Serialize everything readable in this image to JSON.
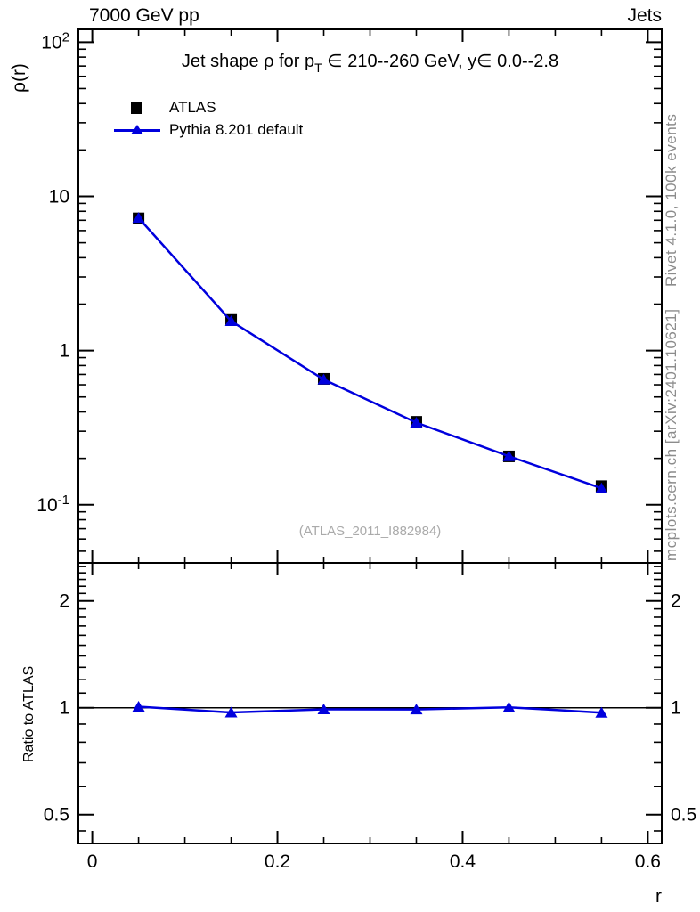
{
  "header": {
    "left": "7000 GeV pp",
    "right": "Jets"
  },
  "titles": {
    "main_pre": "Jet shape ρ for p",
    "main_sub": "T",
    "main_post": " ∈ 210--260 GeV, y∈ 0.0--2.8",
    "watermark": "(ATLAS_2011_I882984)",
    "credit_right_top": "Rivet 4.1.0,  100k events",
    "credit_right_bottom": "mcplots.cern.ch [arXiv:2401.10621]"
  },
  "axes": {
    "ylabel": "ρ(r)",
    "xlabel": "r",
    "ratio_ylabel": "Ratio to ATLAS"
  },
  "legend": {
    "items": [
      {
        "label": "ATLAS",
        "marker": "black-square"
      },
      {
        "label": "Pythia 8.201 default",
        "marker": "blue-line-triangle"
      }
    ]
  },
  "colors": {
    "pythia_blue": "#0000dd",
    "atlas_black": "#000000",
    "credit_gray": "#8c8c8c",
    "watermark_gray": "#aaaaaa"
  },
  "chart_data": [
    {
      "type": "line",
      "title": "Jet shape ρ for pT ∈ 210--260 GeV, y∈ 0.0--2.8",
      "xlabel": "r",
      "ylabel": "ρ(r)",
      "yscale": "log",
      "xlim": [
        -0.015,
        0.615
      ],
      "ylim": [
        0.042,
        121
      ],
      "x": [
        0.05,
        0.15,
        0.25,
        0.35,
        0.45,
        0.55
      ],
      "series": [
        {
          "name": "ATLAS",
          "marker": "square",
          "color": "#000000",
          "values": [
            7.2,
            1.6,
            0.655,
            0.345,
            0.206,
            0.132
          ]
        },
        {
          "name": "Pythia 8.201 default",
          "marker": "triangle",
          "color": "#0000dd",
          "line": true,
          "values": [
            7.25,
            1.553,
            0.649,
            0.341,
            0.2065,
            0.128
          ]
        }
      ],
      "yticks": [
        {
          "v": 100,
          "t": "10",
          "exp": "2"
        },
        {
          "v": 10,
          "t": "10"
        },
        {
          "v": 1,
          "t": "1"
        },
        {
          "v": 0.1,
          "t": "10",
          "exp": "-1"
        }
      ],
      "yminors": [
        0.05,
        0.06,
        0.07,
        0.08,
        0.09,
        0.2,
        0.3,
        0.4,
        0.5,
        0.6,
        0.7,
        0.8,
        0.9,
        2,
        3,
        4,
        5,
        6,
        7,
        8,
        9,
        20,
        30,
        40,
        50,
        60,
        70,
        80,
        90
      ],
      "xticks": [
        {
          "v": 0,
          "t": "0"
        },
        {
          "v": 0.2,
          "t": "0.2"
        },
        {
          "v": 0.4,
          "t": "0.4"
        },
        {
          "v": 0.6,
          "t": "0.6"
        }
      ],
      "x_minor_step": 0.05,
      "legend_position": "top-left-inside",
      "grid": false
    },
    {
      "type": "line",
      "title": "Ratio to ATLAS",
      "ylabel": "Ratio to ATLAS",
      "yscale": "log",
      "xlim": [
        -0.015,
        0.615
      ],
      "ylim": [
        0.415,
        2.56
      ],
      "ref_line": 1,
      "x": [
        0.05,
        0.15,
        0.25,
        0.35,
        0.45,
        0.55
      ],
      "series": [
        {
          "name": "Pythia/ATLAS",
          "marker": "triangle",
          "color": "#0000dd",
          "line": true,
          "values": [
            1.007,
            0.97,
            0.99,
            0.989,
            1.003,
            0.969
          ],
          "errors": [
            0.006,
            0.008,
            0.013,
            0.013,
            0.01,
            0.013
          ]
        }
      ],
      "yticks": [
        {
          "v": 2,
          "t": "2"
        },
        {
          "v": 1,
          "t": "1"
        },
        {
          "v": 0.5,
          "t": "0.5"
        }
      ],
      "yminors": [
        0.45,
        0.6,
        0.7,
        0.8,
        0.9,
        1.1,
        1.2,
        1.3,
        1.4,
        1.5,
        1.6,
        1.7,
        1.8,
        1.9,
        2.1,
        2.2,
        2.3,
        2.4,
        2.5
      ],
      "xticks": [
        {
          "v": 0,
          "t": "0"
        },
        {
          "v": 0.2,
          "t": "0.2"
        },
        {
          "v": 0.4,
          "t": "0.4"
        },
        {
          "v": 0.6,
          "t": "0.6"
        }
      ],
      "x_minor_step": 0.05,
      "grid": false
    }
  ]
}
